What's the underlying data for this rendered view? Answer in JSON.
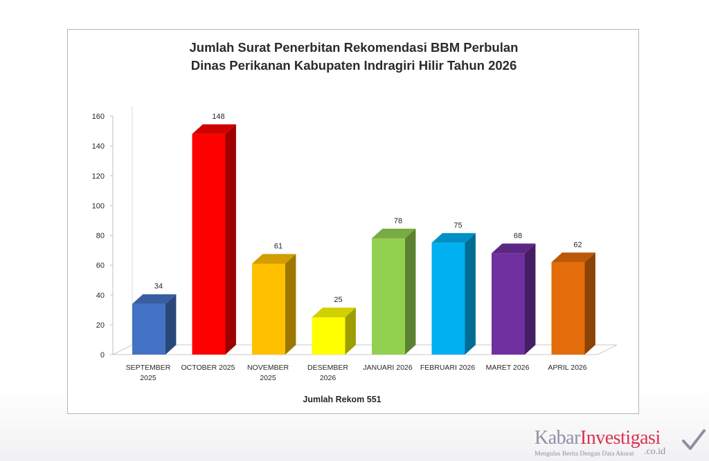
{
  "chart_data": {
    "type": "bar",
    "title_lines": [
      "Jumlah Surat Penerbitan Rekomendasi BBM Perbulan",
      "Dinas Perikanan Kabupaten Indragiri Hilir Tahun 2026"
    ],
    "xlabel": "Jumlah Rekom 551",
    "ylabel": "",
    "ylim": [
      0,
      160
    ],
    "yticks": [
      0,
      20,
      40,
      60,
      80,
      100,
      120,
      140,
      160
    ],
    "grid": false,
    "style": "3d-column",
    "categories": [
      [
        "SEPTEMBER",
        "2025"
      ],
      [
        "OCTOBER 2025"
      ],
      [
        "NOVEMBER",
        "2025"
      ],
      [
        "DESEMBER",
        "2026"
      ],
      [
        "JANUARI 2026"
      ],
      [
        "FEBRUARI 2026"
      ],
      [
        "MARET 2026"
      ],
      [
        "APRIL 2026"
      ]
    ],
    "values": [
      34,
      148,
      61,
      25,
      78,
      75,
      68,
      62
    ],
    "colors": [
      "#4472c4",
      "#ff0000",
      "#ffc000",
      "#ffff00",
      "#92d050",
      "#00b0f0",
      "#7030a0",
      "#e46c0a"
    ]
  },
  "watermark": {
    "brand_part1": "Kabar",
    "brand_part2": "Investigasi",
    "domain": ".co.id",
    "tagline": "Mengulas Berita Dengan Data Akurat"
  }
}
